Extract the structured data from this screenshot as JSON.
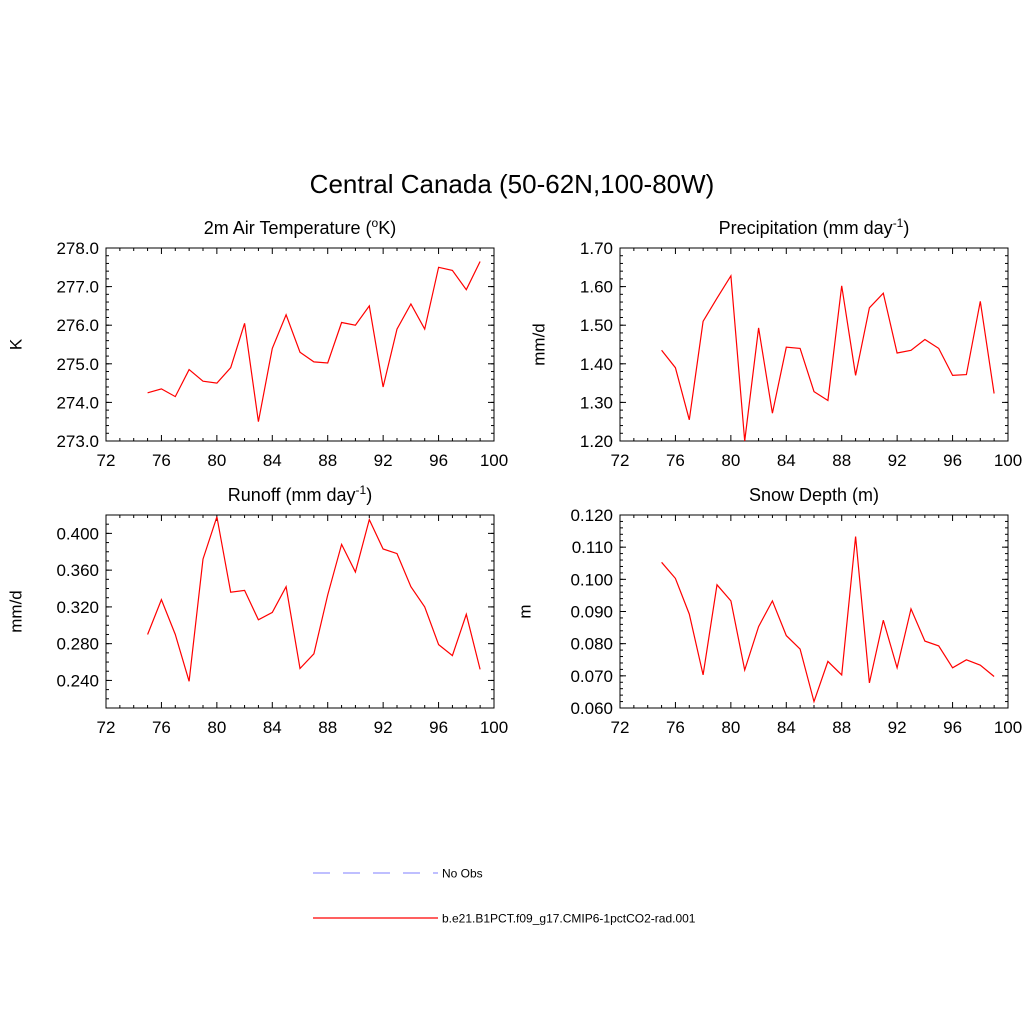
{
  "title": "Central Canada (50-62N,100-80W)",
  "colors": {
    "model_line": "#ff0000",
    "obs_line": "#9999ff",
    "axis": "#000000",
    "background": "#ffffff"
  },
  "legend": {
    "placement": "bottom-center",
    "items": [
      {
        "label": "No Obs",
        "color": "#9999ff",
        "style": "dashed"
      },
      {
        "label": "b.e21.B1PCT.f09_g17.CMIP6-1pctCO2-rad.001",
        "color": "#ff0000",
        "style": "solid"
      }
    ]
  },
  "chart_data": [
    {
      "type": "line",
      "title": "2m Air Temperature (",
      "title_sup_pre": "o",
      "title_tail": "K)",
      "title_sup_post": "",
      "title_end": "",
      "ylabel": "K",
      "xlim": [
        72,
        100
      ],
      "ylim": [
        273.0,
        278.0
      ],
      "xticks": [
        72,
        76,
        80,
        84,
        88,
        92,
        96,
        100
      ],
      "yticks": [
        "273.0",
        "274.0",
        "275.0",
        "276.0",
        "277.0",
        "278.0"
      ],
      "yminor": 0.2,
      "series": [
        {
          "name": "b.e21.B1PCT.f09_g17.CMIP6-1pctCO2-rad.001",
          "x": [
            75,
            76,
            77,
            78,
            79,
            80,
            81,
            82,
            83,
            84,
            85,
            86,
            87,
            88,
            89,
            90,
            91,
            92,
            93,
            94,
            95,
            96,
            97,
            98,
            99
          ],
          "y": [
            274.25,
            274.35,
            274.15,
            274.85,
            274.55,
            274.5,
            274.9,
            276.05,
            273.5,
            275.4,
            276.27,
            275.3,
            275.05,
            275.02,
            276.07,
            276.0,
            276.5,
            274.4,
            275.9,
            276.55,
            275.9,
            277.5,
            277.42,
            276.92,
            277.65
          ]
        }
      ]
    },
    {
      "type": "line",
      "title": "Precipitation (mm day",
      "title_sup_pre": "",
      "title_tail": "",
      "title_sup_post": "-1",
      "title_end": ")",
      "ylabel": "mm/d",
      "xlim": [
        72,
        100
      ],
      "ylim": [
        1.2,
        1.7
      ],
      "xticks": [
        72,
        76,
        80,
        84,
        88,
        92,
        96,
        100
      ],
      "yticks": [
        "1.20",
        "1.30",
        "1.40",
        "1.50",
        "1.60",
        "1.70"
      ],
      "yminor": 0.02,
      "series": [
        {
          "name": "b.e21.B1PCT.f09_g17.CMIP6-1pctCO2-rad.001",
          "x": [
            75,
            76,
            77,
            78,
            79,
            80,
            81,
            82,
            83,
            84,
            85,
            86,
            87,
            88,
            89,
            90,
            91,
            92,
            93,
            94,
            95,
            96,
            97,
            98,
            99
          ],
          "y": [
            1.435,
            1.39,
            1.255,
            1.51,
            1.57,
            1.628,
            1.2,
            1.493,
            1.272,
            1.443,
            1.44,
            1.328,
            1.305,
            1.602,
            1.37,
            1.545,
            1.583,
            1.428,
            1.435,
            1.463,
            1.44,
            1.37,
            1.372,
            1.562,
            1.323
          ]
        }
      ]
    },
    {
      "type": "line",
      "title": "Runoff (mm day",
      "title_sup_pre": "",
      "title_tail": "",
      "title_sup_post": "-1",
      "title_end": ")",
      "ylabel": "mm/d",
      "xlim": [
        72,
        100
      ],
      "ylim": [
        0.21,
        0.42
      ],
      "xticks": [
        72,
        76,
        80,
        84,
        88,
        92,
        96,
        100
      ],
      "yticks": [
        "0.240",
        "0.280",
        "0.320",
        "0.360",
        "0.400"
      ],
      "yminor": 0.01,
      "series": [
        {
          "name": "b.e21.B1PCT.f09_g17.CMIP6-1pctCO2-rad.001",
          "x": [
            75,
            76,
            77,
            78,
            79,
            80,
            81,
            82,
            83,
            84,
            85,
            86,
            87,
            88,
            89,
            90,
            91,
            92,
            93,
            94,
            95,
            96,
            97,
            98,
            99
          ],
          "y": [
            0.29,
            0.328,
            0.29,
            0.239,
            0.372,
            0.418,
            0.336,
            0.338,
            0.306,
            0.314,
            0.342,
            0.253,
            0.269,
            0.333,
            0.388,
            0.358,
            0.415,
            0.383,
            0.378,
            0.342,
            0.32,
            0.279,
            0.267,
            0.312,
            0.252
          ]
        }
      ]
    },
    {
      "type": "line",
      "title": "Snow Depth (m)",
      "title_sup_pre": "",
      "title_tail": "",
      "title_sup_post": "",
      "title_end": "",
      "ylabel": "m",
      "xlim": [
        72,
        100
      ],
      "ylim": [
        0.06,
        0.12
      ],
      "xticks": [
        72,
        76,
        80,
        84,
        88,
        92,
        96,
        100
      ],
      "yticks": [
        "0.060",
        "0.070",
        "0.080",
        "0.090",
        "0.100",
        "0.110",
        "0.120"
      ],
      "yminor": 0.002,
      "series": [
        {
          "name": "b.e21.B1PCT.f09_g17.CMIP6-1pctCO2-rad.001",
          "x": [
            75,
            76,
            77,
            78,
            79,
            80,
            81,
            82,
            83,
            84,
            85,
            86,
            87,
            88,
            89,
            90,
            91,
            92,
            93,
            94,
            95,
            96,
            97,
            98,
            99
          ],
          "y": [
            0.1053,
            0.1003,
            0.0892,
            0.0703,
            0.0983,
            0.0933,
            0.0718,
            0.0853,
            0.0933,
            0.0825,
            0.0783,
            0.062,
            0.0745,
            0.0703,
            0.1133,
            0.0678,
            0.0873,
            0.0725,
            0.0908,
            0.0808,
            0.0793,
            0.0725,
            0.075,
            0.0733,
            0.0698
          ]
        }
      ]
    }
  ]
}
